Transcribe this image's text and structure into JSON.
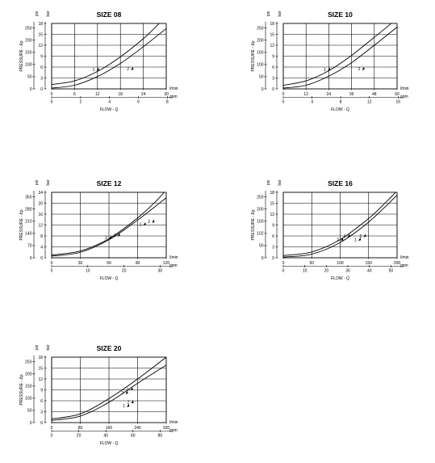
{
  "chart_data": [
    {
      "type": "line",
      "title": "SIZE 08",
      "xlabel": "FLOW - Q",
      "ylabel": "PRESSURE - Δp",
      "units": {
        "x_primary": "l/min",
        "x_secondary": "gpm",
        "y_left": "psi",
        "y_right": "bar"
      },
      "x_primary_ticks": [
        "0",
        "6",
        "12",
        "18",
        "24",
        "30"
      ],
      "x_secondary_ticks": [
        "0",
        "2",
        "4",
        "6",
        "8"
      ],
      "y_left_ticks": [
        "0",
        "50",
        "100",
        "150",
        "200",
        "250"
      ],
      "y_right_ticks": [
        "0",
        "3",
        "6",
        "9",
        "12",
        "15",
        "18"
      ],
      "xlim": [
        0,
        30
      ],
      "ylim": [
        0,
        18
      ],
      "grid": true,
      "series": [
        {
          "name": "1",
          "x": [
            0,
            6,
            12,
            18,
            24,
            27,
            30
          ],
          "y": [
            1.2,
            2.2,
            4.8,
            8.8,
            13.8,
            16.8,
            20
          ]
        },
        {
          "name": "2",
          "x": [
            0,
            6,
            12,
            18,
            24,
            30
          ],
          "y": [
            0.2,
            1.0,
            3.4,
            7.0,
            11.6,
            16.6
          ]
        }
      ],
      "annotations": [
        {
          "text": "1",
          "x": 11.0,
          "y": 5.3
        },
        {
          "text": "2",
          "x": 20.0,
          "y": 5.5
        }
      ]
    },
    {
      "type": "line",
      "title": "SIZE 10",
      "xlabel": "FLOW - Q",
      "ylabel": "PRESSURE - Δp",
      "units": {
        "x_primary": "l/min",
        "x_secondary": "gpm",
        "y_left": "psi",
        "y_right": "bar"
      },
      "x_primary_ticks": [
        "0",
        "12",
        "24",
        "36",
        "48",
        "60"
      ],
      "x_secondary_ticks": [
        "0",
        "4",
        "8",
        "12",
        "16"
      ],
      "y_left_ticks": [
        "0",
        "50",
        "100",
        "150",
        "200",
        "250"
      ],
      "y_right_ticks": [
        "0",
        "3",
        "6",
        "9",
        "12",
        "15",
        "18"
      ],
      "xlim": [
        0,
        60
      ],
      "ylim": [
        0,
        18
      ],
      "grid": true,
      "series": [
        {
          "name": "1",
          "x": [
            0,
            12,
            24,
            36,
            48,
            56,
            60
          ],
          "y": [
            1.0,
            2.2,
            5.0,
            9.2,
            14.2,
            17.6,
            19.5
          ]
        },
        {
          "name": "2",
          "x": [
            0,
            12,
            24,
            36,
            48,
            60
          ],
          "y": [
            0.2,
            1.0,
            3.5,
            7.2,
            12.0,
            17.0
          ]
        }
      ],
      "annotations": [
        {
          "text": "1",
          "x": 22.0,
          "y": 5.3
        },
        {
          "text": "2",
          "x": 40.0,
          "y": 5.5
        }
      ]
    },
    {
      "type": "line",
      "title": "SIZE 12",
      "xlabel": "FLOW - Q",
      "ylabel": "PRESSURE - Δp",
      "units": {
        "x_primary": "l/min",
        "x_secondary": "gpm",
        "y_left": "psi",
        "y_right": "bar"
      },
      "x_primary_ticks": [
        "0",
        "30",
        "60",
        "90",
        "120"
      ],
      "x_secondary_ticks": [
        "0",
        "10",
        "20",
        "30"
      ],
      "y_left_ticks": [
        "0",
        "70",
        "140",
        "210",
        "280",
        "350"
      ],
      "y_right_ticks": [
        "0",
        "4",
        "8",
        "12",
        "16",
        "20",
        "24"
      ],
      "xlim": [
        0,
        120
      ],
      "ylim": [
        0,
        24
      ],
      "grid": true,
      "series": [
        {
          "name": "1",
          "x": [
            0,
            30,
            60,
            90,
            110,
            120
          ],
          "y": [
            1.0,
            2.5,
            7.0,
            14.6,
            21.0,
            25.0
          ]
        },
        {
          "name": "2",
          "x": [
            0,
            30,
            60,
            90,
            120
          ],
          "y": [
            0.6,
            2.0,
            6.6,
            13.8,
            22.0
          ]
        }
      ],
      "annotations": [
        {
          "text": "2",
          "x": 57.0,
          "y": 7.3
        },
        {
          "text": "1",
          "x": 66.0,
          "y": 8.3
        },
        {
          "text": "1",
          "x": 93.0,
          "y": 12.3
        },
        {
          "text": "2",
          "x": 102.0,
          "y": 13.3
        }
      ]
    },
    {
      "type": "line",
      "title": "SIZE 16",
      "xlabel": "FLOW - Q",
      "ylabel": "PRESSURE - Δp",
      "units": {
        "x_primary": "l/min",
        "x_secondary": "gpm",
        "y_left": "psi",
        "y_right": "bar"
      },
      "x_primary_ticks": [
        "0",
        "50",
        "100",
        "150",
        "200"
      ],
      "x_secondary_ticks": [
        "0",
        "10",
        "20",
        "30",
        "40",
        "50"
      ],
      "y_left_ticks": [
        "0",
        "50",
        "102",
        "150",
        "200",
        "250"
      ],
      "y_right_ticks": [
        "0",
        "3",
        "6",
        "9",
        "12",
        "15",
        "18"
      ],
      "xlim": [
        0,
        200
      ],
      "ylim": [
        0,
        18
      ],
      "grid": true,
      "series": [
        {
          "name": "1",
          "x": [
            0,
            50,
            100,
            150,
            180,
            200
          ],
          "y": [
            0.6,
            1.6,
            5.0,
            10.8,
            15.2,
            18.4
          ]
        },
        {
          "name": "2",
          "x": [
            0,
            50,
            100,
            150,
            200
          ],
          "y": [
            0.2,
            1.0,
            4.2,
            9.8,
            17.2
          ]
        }
      ],
      "annotations": [
        {
          "text": "2",
          "x": 96.0,
          "y": 5.0
        },
        {
          "text": "1",
          "x": 108.0,
          "y": 6.0
        },
        {
          "text": "1",
          "x": 127.0,
          "y": 5.0
        },
        {
          "text": "2",
          "x": 136.0,
          "y": 6.0
        }
      ]
    },
    {
      "type": "line",
      "title": "SIZE 20",
      "xlabel": "FLOW - Q",
      "ylabel": "PRESSURE - Δp",
      "units": {
        "x_primary": "l/min",
        "x_secondary": "gpm",
        "y_left": "psi",
        "y_right": "bar"
      },
      "x_primary_ticks": [
        "0",
        "80",
        "160",
        "240",
        "320"
      ],
      "x_secondary_ticks": [
        "0",
        "20",
        "40",
        "60",
        "80"
      ],
      "y_left_ticks": [
        "0",
        "50",
        "100",
        "150",
        "200",
        "250"
      ],
      "y_right_ticks": [
        "0",
        "3",
        "6",
        "9",
        "12",
        "15",
        "18"
      ],
      "xlim": [
        0,
        320
      ],
      "ylim": [
        0,
        18
      ],
      "grid": true,
      "series": [
        {
          "name": "1",
          "x": [
            0,
            80,
            160,
            240,
            320
          ],
          "y": [
            1.0,
            2.4,
            6.6,
            12.0,
            18.0
          ]
        },
        {
          "name": "2",
          "x": [
            0,
            80,
            160,
            240,
            320
          ],
          "y": [
            0.6,
            1.8,
            5.6,
            10.8,
            15.8
          ]
        }
      ],
      "annotations": [
        {
          "text": "2",
          "x": 198.0,
          "y": 8.2
        },
        {
          "text": "1",
          "x": 212.0,
          "y": 9.2
        },
        {
          "text": "1",
          "x": 202.0,
          "y": 4.6
        },
        {
          "text": "2",
          "x": 214.0,
          "y": 5.6
        }
      ]
    }
  ]
}
